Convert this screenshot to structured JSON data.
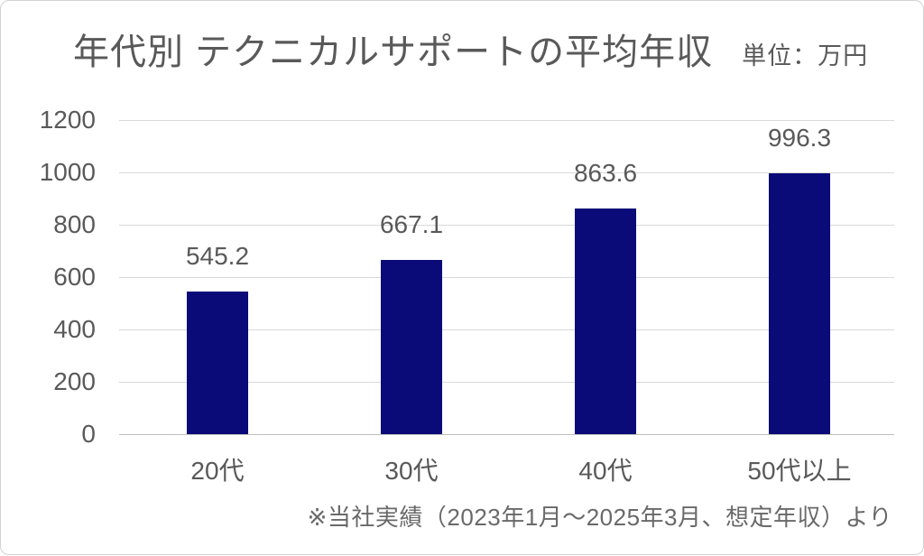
{
  "card": {
    "title": "年代別 テクニカルサポートの平均年収",
    "unit_label": "単位：万円",
    "footnote": "※当社実績（2023年1月～2025年3月、想定年収）より"
  },
  "chart_data": {
    "type": "bar",
    "title": "年代別 テクニカルサポートの平均年収",
    "unit": "万円",
    "categories": [
      "20代",
      "30代",
      "40代",
      "50代以上"
    ],
    "values": [
      545.2,
      667.1,
      863.6,
      996.3
    ],
    "data_labels": [
      "545.2",
      "667.1",
      "863.6",
      "996.3"
    ],
    "xlabel": "",
    "ylabel": "",
    "ylim": [
      0,
      1200
    ],
    "ytick_step": 200,
    "yticks": [
      0,
      200,
      400,
      600,
      800,
      1000,
      1200
    ],
    "grid": true,
    "legend_position": "none",
    "source_note": "※当社実績（2023年1月～2025年3月、想定年収）より",
    "colors": {
      "bar": "#0A0A78",
      "text": "#595959",
      "gridline": "#D9D9D9",
      "axis_line": "#BFBFBF",
      "card_border": "#D2D2D2",
      "background": "#FFFFFF"
    }
  }
}
